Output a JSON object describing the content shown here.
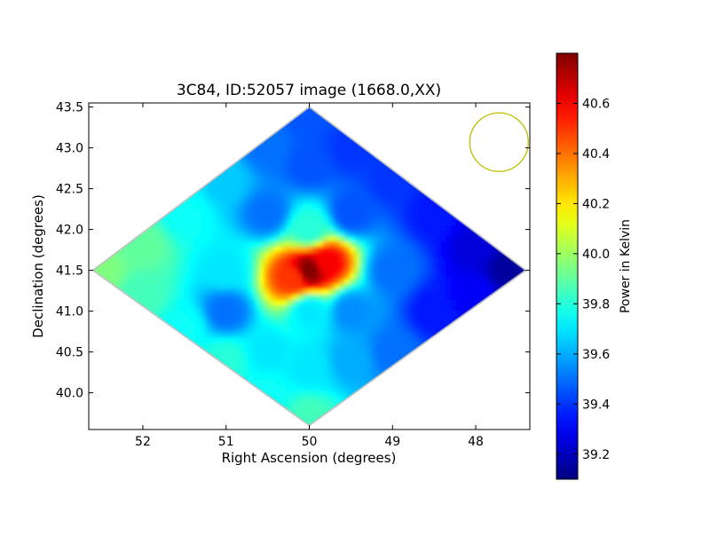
{
  "chart_data": {
    "type": "heatmap",
    "title": "3C84, ID:52057 image (1668.0,XX)",
    "xlabel": "Right Ascension (degrees)",
    "ylabel": "Declination (degrees)",
    "xlim": [
      52.65,
      47.35
    ],
    "ylim": [
      39.55,
      43.55
    ],
    "x_axis_inverted": true,
    "xticks": [
      52,
      51,
      50,
      49,
      48
    ],
    "xtick_labels": [
      "52",
      "51",
      "50",
      "49",
      "48"
    ],
    "yticks": [
      40.0,
      40.5,
      41.0,
      41.5,
      42.0,
      42.5,
      43.0,
      43.5
    ],
    "ytick_labels": [
      "40.0",
      "40.5",
      "41.0",
      "41.5",
      "42.0",
      "42.5",
      "43.0",
      "43.5"
    ],
    "colormap": "jet",
    "colorbar": {
      "label": "Power in Kelvin",
      "range": [
        39.1,
        40.8
      ],
      "ticks": [
        39.2,
        39.4,
        39.6,
        39.8,
        40.0,
        40.2,
        40.4,
        40.6
      ],
      "tick_labels": [
        "39.2",
        "39.4",
        "39.6",
        "39.8",
        "40.0",
        "40.2",
        "40.4",
        "40.6"
      ]
    },
    "field_outline": [
      [
        50.0,
        43.5
      ],
      [
        47.4,
        41.5
      ],
      [
        50.0,
        39.6
      ],
      [
        52.6,
        41.5
      ]
    ],
    "samples": [
      {
        "ra": 52.5,
        "dec": 41.5,
        "value": 39.95
      },
      {
        "ra": 52.0,
        "dec": 41.8,
        "value": 39.9
      },
      {
        "ra": 52.0,
        "dec": 41.2,
        "value": 39.85
      },
      {
        "ra": 51.5,
        "dec": 42.2,
        "value": 39.75
      },
      {
        "ra": 51.5,
        "dec": 40.8,
        "value": 39.75
      },
      {
        "ra": 51.0,
        "dec": 42.6,
        "value": 39.65
      },
      {
        "ra": 51.0,
        "dec": 41.5,
        "value": 39.7
      },
      {
        "ra": 51.0,
        "dec": 41.0,
        "value": 39.5
      },
      {
        "ra": 51.0,
        "dec": 40.4,
        "value": 39.8
      },
      {
        "ra": 50.5,
        "dec": 43.0,
        "value": 39.5
      },
      {
        "ra": 50.5,
        "dec": 42.2,
        "value": 39.5
      },
      {
        "ra": 50.5,
        "dec": 40.5,
        "value": 39.7
      },
      {
        "ra": 50.5,
        "dec": 40.0,
        "value": 39.75
      },
      {
        "ra": 50.0,
        "dec": 43.4,
        "value": 39.45
      },
      {
        "ra": 50.0,
        "dec": 42.8,
        "value": 39.45
      },
      {
        "ra": 50.0,
        "dec": 42.0,
        "value": 39.8
      },
      {
        "ra": 50.0,
        "dec": 41.5,
        "value": 40.8
      },
      {
        "ra": 49.8,
        "dec": 41.6,
        "value": 40.6
      },
      {
        "ra": 50.2,
        "dec": 41.4,
        "value": 40.5
      },
      {
        "ra": 50.0,
        "dec": 41.0,
        "value": 39.7
      },
      {
        "ra": 50.0,
        "dec": 40.3,
        "value": 39.7
      },
      {
        "ra": 50.0,
        "dec": 39.7,
        "value": 39.85
      },
      {
        "ra": 49.5,
        "dec": 43.0,
        "value": 39.4
      },
      {
        "ra": 49.5,
        "dec": 42.2,
        "value": 39.45
      },
      {
        "ra": 49.5,
        "dec": 41.0,
        "value": 39.55
      },
      {
        "ra": 49.5,
        "dec": 40.4,
        "value": 39.6
      },
      {
        "ra": 49.0,
        "dec": 42.6,
        "value": 39.4
      },
      {
        "ra": 49.0,
        "dec": 41.5,
        "value": 39.5
      },
      {
        "ra": 49.0,
        "dec": 40.5,
        "value": 39.5
      },
      {
        "ra": 48.5,
        "dec": 42.2,
        "value": 39.35
      },
      {
        "ra": 48.5,
        "dec": 41.0,
        "value": 39.35
      },
      {
        "ra": 48.0,
        "dec": 41.8,
        "value": 39.25
      },
      {
        "ra": 48.0,
        "dec": 41.2,
        "value": 39.3
      },
      {
        "ra": 47.6,
        "dec": 41.5,
        "value": 39.15
      }
    ],
    "beam_marker": {
      "shape": "circle",
      "ra": 47.72,
      "dec": 43.07,
      "color": "#bfbf00"
    }
  }
}
